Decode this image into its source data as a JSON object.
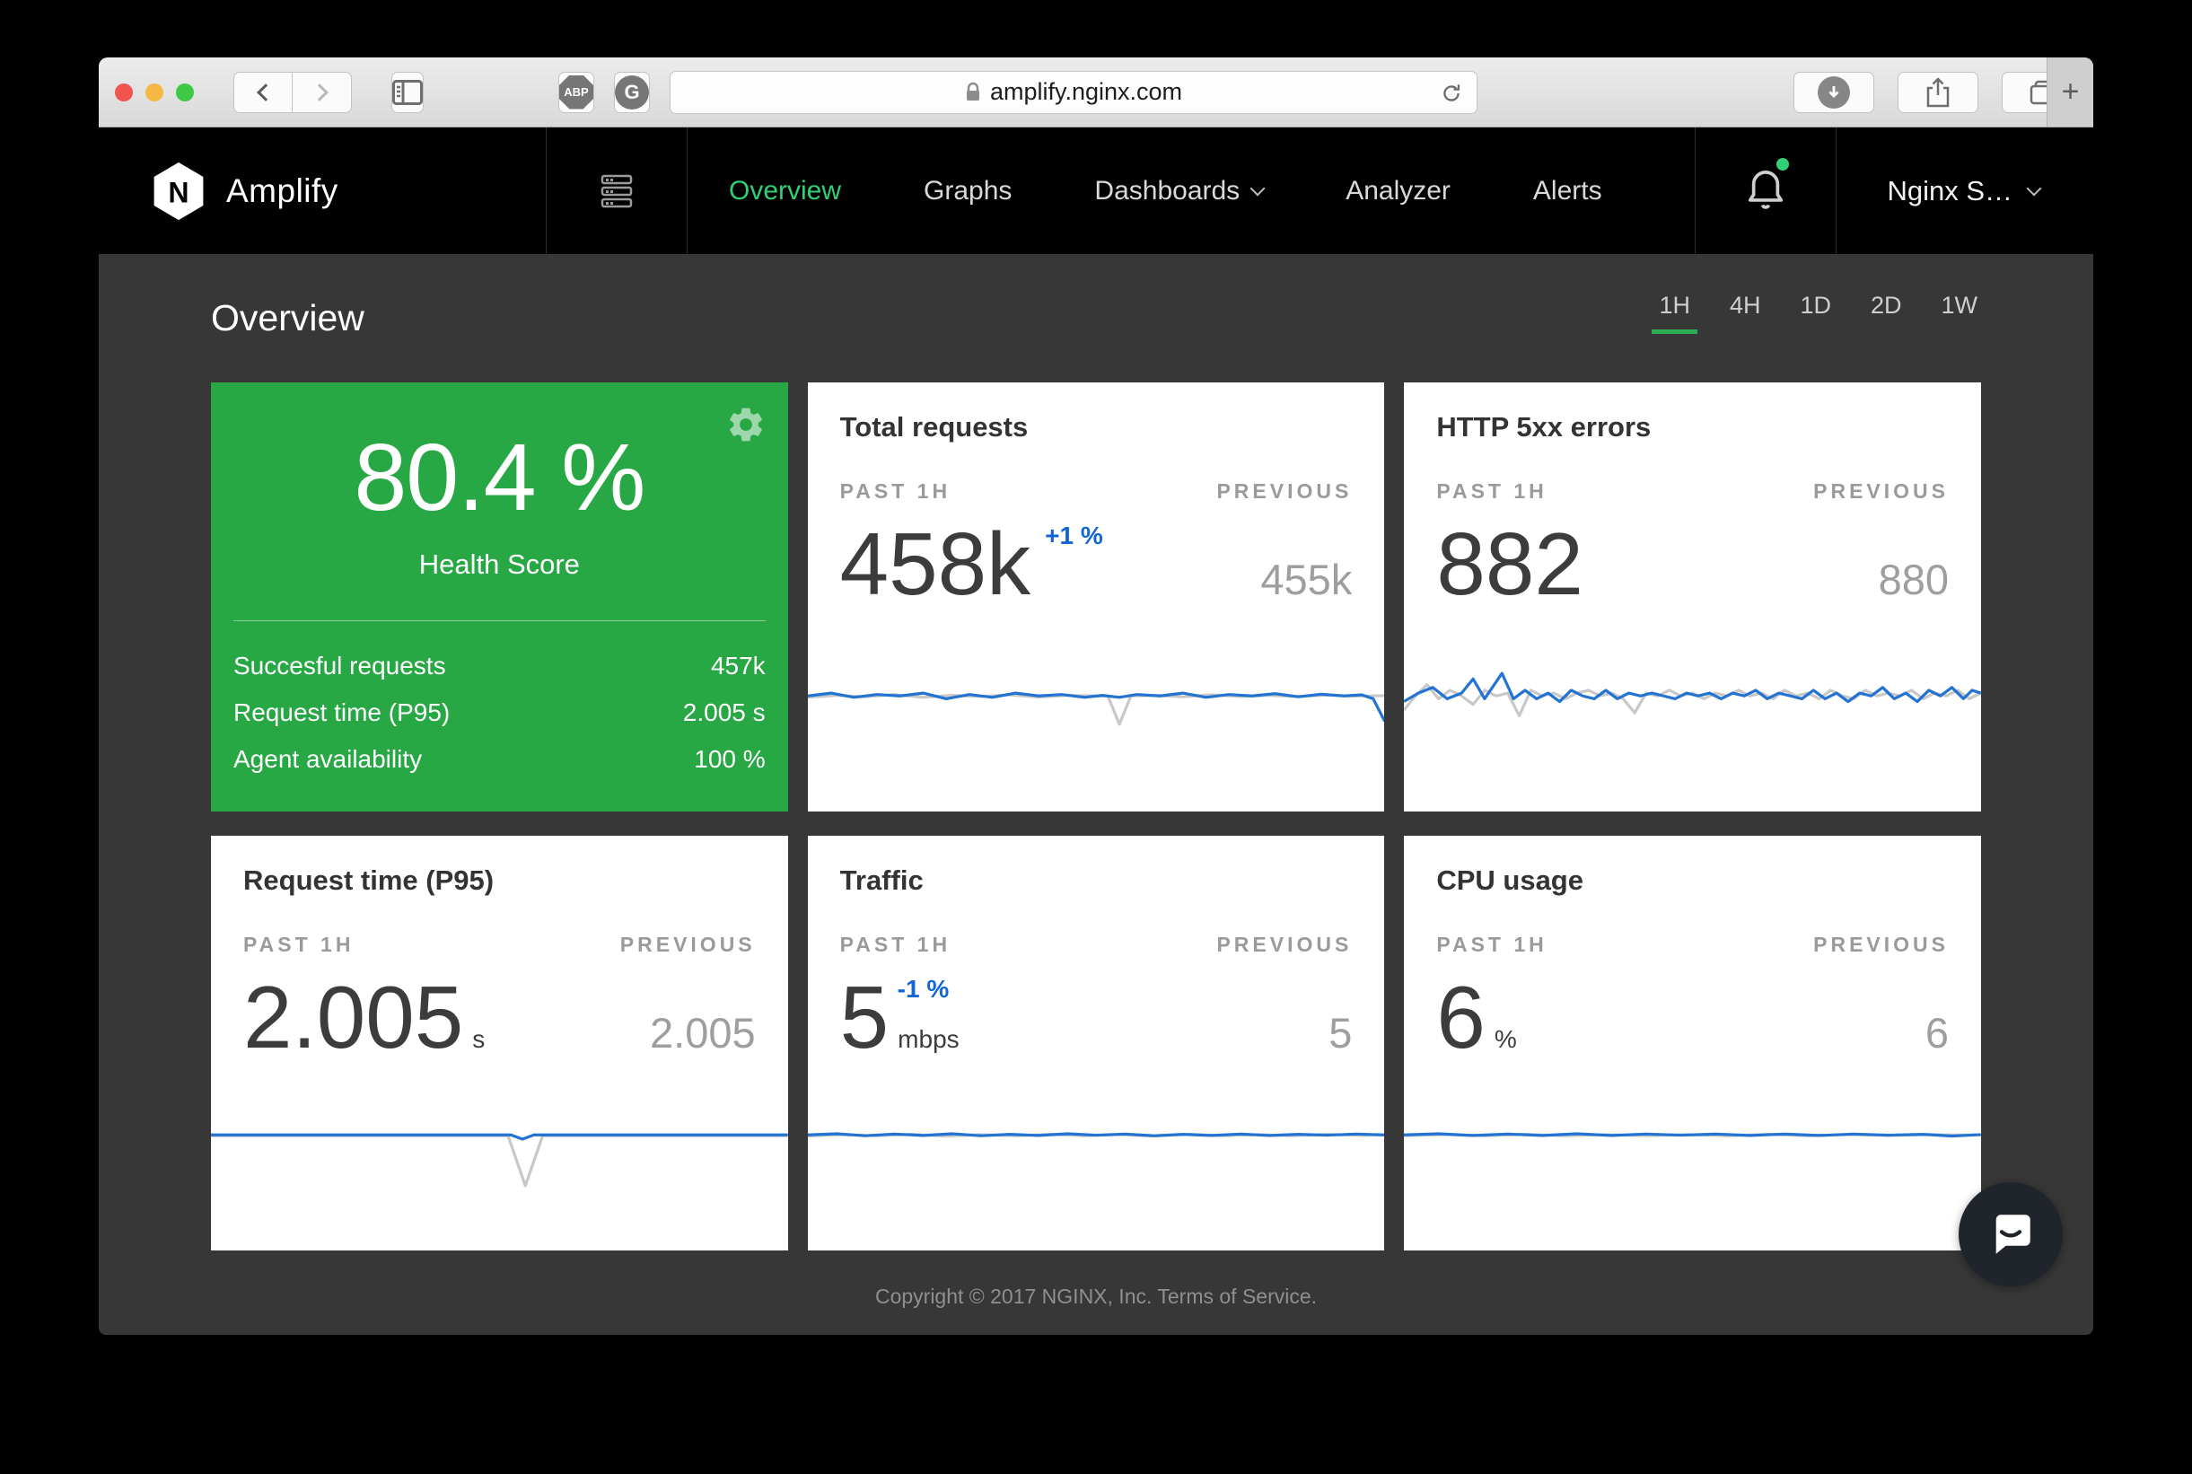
{
  "browser": {
    "url": "amplify.nginx.com",
    "new_tab_label": "+",
    "abp_label": "ABP",
    "ghostery_label": "G"
  },
  "nav": {
    "brand": "Amplify",
    "items": [
      {
        "label": "Overview"
      },
      {
        "label": "Graphs"
      },
      {
        "label": "Dashboards"
      },
      {
        "label": "Analyzer"
      },
      {
        "label": "Alerts"
      }
    ],
    "account": "Nginx S…"
  },
  "page": {
    "title": "Overview",
    "time_ranges": [
      "1H",
      "4H",
      "1D",
      "2D",
      "1W"
    ],
    "active_range": "1H"
  },
  "health_card": {
    "score": "80.4 %",
    "label": "Health Score",
    "stats": [
      {
        "label": "Succesful requests",
        "value": "457k"
      },
      {
        "label": "Request time (P95)",
        "value": "2.005 s"
      },
      {
        "label": "Agent availability",
        "value": "100 %"
      }
    ]
  },
  "cards": {
    "total_requests": {
      "title": "Total requests",
      "past_label": "PAST 1H",
      "prev_label": "PREVIOUS",
      "value": "458k",
      "delta": "+1 %",
      "prev": "455k"
    },
    "http_5xx": {
      "title": "HTTP 5xx errors",
      "past_label": "PAST 1H",
      "prev_label": "PREVIOUS",
      "value": "882",
      "prev": "880"
    },
    "request_time": {
      "title": "Request time (P95)",
      "past_label": "PAST 1H",
      "prev_label": "PREVIOUS",
      "value": "2.005",
      "unit": "s",
      "prev": "2.005"
    },
    "traffic": {
      "title": "Traffic",
      "past_label": "PAST 1H",
      "prev_label": "PREVIOUS",
      "value": "5",
      "unit": "mbps",
      "delta": "-1 %",
      "prev": "5"
    },
    "cpu": {
      "title": "CPU usage",
      "past_label": "PAST 1H",
      "prev_label": "PREVIOUS",
      "value": "6",
      "unit": "%",
      "prev": "6"
    }
  },
  "footer": {
    "copyright": "Copyright © 2017 NGINX, Inc.",
    "terms": "Terms of Service."
  },
  "colors": {
    "accent_green": "#28a745",
    "nav_active_green": "#31d074",
    "range_underline_green": "#2bae53",
    "delta_blue": "#1266d8",
    "line_blue": "#2273d2",
    "line_gray": "#c8c8c8"
  },
  "sparklines": {
    "total_requests": {
      "series": [
        {
          "name": "previous",
          "color": "#c8c8c8",
          "points": [
            [
              0,
              15.5
            ],
            [
              10,
              14.8
            ],
            [
              20,
              15.3
            ],
            [
              30,
              14.5
            ],
            [
              40,
              15.5
            ],
            [
              50,
              14.8
            ],
            [
              60,
              15.2
            ],
            [
              70,
              14.6
            ],
            [
              80,
              15.4
            ],
            [
              90,
              14.8
            ],
            [
              100,
              15
            ],
            [
              104,
              15
            ],
            [
              108,
              25
            ],
            [
              112,
              15
            ],
            [
              120,
              14.8
            ],
            [
              130,
              15.3
            ],
            [
              140,
              14.6
            ],
            [
              150,
              15.2
            ],
            [
              160,
              14.8
            ],
            [
              170,
              15.2
            ],
            [
              180,
              14.7
            ],
            [
              190,
              15.1
            ],
            [
              200,
              14.9
            ]
          ]
        },
        {
          "name": "current",
          "color": "#2273d2",
          "points": [
            [
              0,
              15
            ],
            [
              8,
              14
            ],
            [
              16,
              15.5
            ],
            [
              24,
              14.5
            ],
            [
              32,
              15
            ],
            [
              40,
              14
            ],
            [
              48,
              16
            ],
            [
              56,
              14.5
            ],
            [
              64,
              15.5
            ],
            [
              72,
              14
            ],
            [
              80,
              15
            ],
            [
              88,
              14.5
            ],
            [
              96,
              15.5
            ],
            [
              102,
              14.8
            ],
            [
              108,
              15.5
            ],
            [
              114,
              14.5
            ],
            [
              122,
              15
            ],
            [
              130,
              14
            ],
            [
              138,
              15.5
            ],
            [
              146,
              14.5
            ],
            [
              154,
              15
            ],
            [
              162,
              14.2
            ],
            [
              170,
              15.3
            ],
            [
              178,
              14.4
            ],
            [
              186,
              15
            ],
            [
              192,
              14.6
            ],
            [
              196,
              16
            ],
            [
              200,
              24
            ]
          ]
        }
      ]
    },
    "http_5xx": {
      "series": [
        {
          "name": "previous",
          "color": "#c8c8c8",
          "points": [
            [
              0,
              20
            ],
            [
              4,
              15
            ],
            [
              8,
              11
            ],
            [
              12,
              16
            ],
            [
              16,
              13
            ],
            [
              20,
              15
            ],
            [
              24,
              18
            ],
            [
              28,
              13
            ],
            [
              32,
              15
            ],
            [
              36,
              14
            ],
            [
              40,
              22
            ],
            [
              44,
              13
            ],
            [
              48,
              15
            ],
            [
              52,
              14
            ],
            [
              56,
              16
            ],
            [
              60,
              14
            ],
            [
              64,
              13
            ],
            [
              68,
              15
            ],
            [
              72,
              14
            ],
            [
              76,
              16
            ],
            [
              80,
              21
            ],
            [
              84,
              14
            ],
            [
              88,
              15
            ],
            [
              92,
              13
            ],
            [
              96,
              15
            ],
            [
              100,
              14
            ],
            [
              104,
              16
            ],
            [
              108,
              14
            ],
            [
              112,
              15
            ],
            [
              116,
              13
            ],
            [
              120,
              15
            ],
            [
              124,
              14
            ],
            [
              128,
              16
            ],
            [
              132,
              13
            ],
            [
              136,
              15
            ],
            [
              140,
              14
            ],
            [
              144,
              16
            ],
            [
              148,
              13
            ],
            [
              152,
              15
            ],
            [
              156,
              16
            ],
            [
              160,
              13
            ],
            [
              164,
              15
            ],
            [
              168,
              14
            ],
            [
              172,
              15
            ],
            [
              176,
              13
            ],
            [
              180,
              16
            ],
            [
              184,
              14
            ],
            [
              188,
              15
            ],
            [
              192,
              13
            ],
            [
              196,
              16
            ],
            [
              200,
              14
            ]
          ]
        },
        {
          "name": "current",
          "color": "#2273d2",
          "points": [
            [
              0,
              17
            ],
            [
              5,
              14
            ],
            [
              10,
              12
            ],
            [
              15,
              16
            ],
            [
              20,
              14
            ],
            [
              24,
              9
            ],
            [
              28,
              16
            ],
            [
              34,
              7
            ],
            [
              38,
              16
            ],
            [
              42,
              13
            ],
            [
              46,
              16
            ],
            [
              50,
              14
            ],
            [
              54,
              17
            ],
            [
              58,
              13
            ],
            [
              62,
              15
            ],
            [
              66,
              16
            ],
            [
              70,
              13
            ],
            [
              74,
              16
            ],
            [
              78,
              14
            ],
            [
              82,
              15
            ],
            [
              86,
              14
            ],
            [
              90,
              15
            ],
            [
              94,
              16
            ],
            [
              98,
              14
            ],
            [
              102,
              15
            ],
            [
              106,
              14
            ],
            [
              110,
              16
            ],
            [
              114,
              14
            ],
            [
              118,
              15
            ],
            [
              122,
              13
            ],
            [
              126,
              16
            ],
            [
              130,
              14
            ],
            [
              134,
              15
            ],
            [
              138,
              16
            ],
            [
              142,
              13
            ],
            [
              146,
              16
            ],
            [
              150,
              14
            ],
            [
              154,
              17
            ],
            [
              158,
              14
            ],
            [
              162,
              15
            ],
            [
              166,
              12
            ],
            [
              170,
              16
            ],
            [
              174,
              14
            ],
            [
              178,
              17
            ],
            [
              182,
              13
            ],
            [
              186,
              15
            ],
            [
              190,
              12
            ],
            [
              194,
              16
            ],
            [
              197,
              13
            ],
            [
              200,
              14
            ]
          ]
        }
      ]
    },
    "request_time": {
      "series": [
        {
          "name": "previous",
          "color": "#c8c8c8",
          "points": [
            [
              0,
              15.3
            ],
            [
              103,
              15.3
            ],
            [
              109,
              33
            ],
            [
              115,
              15.3
            ],
            [
              200,
              15.3
            ]
          ]
        },
        {
          "name": "current",
          "color": "#2273d2",
          "points": [
            [
              0,
              15
            ],
            [
              104,
              15
            ],
            [
              108,
              16.5
            ],
            [
              112,
              15
            ],
            [
              200,
              15
            ]
          ]
        }
      ]
    },
    "traffic": {
      "series": [
        {
          "name": "previous",
          "color": "#c8c8c8",
          "points": [
            [
              0,
              15.4
            ],
            [
              12,
              14.9
            ],
            [
              24,
              15.3
            ],
            [
              36,
              14.8
            ],
            [
              48,
              15.4
            ],
            [
              60,
              14.9
            ],
            [
              72,
              15.3
            ],
            [
              84,
              14.8
            ],
            [
              96,
              15.3
            ],
            [
              108,
              14.9
            ],
            [
              120,
              15.4
            ],
            [
              132,
              14.8
            ],
            [
              144,
              15.3
            ],
            [
              156,
              14.9
            ],
            [
              168,
              15.3
            ],
            [
              180,
              14.8
            ],
            [
              192,
              15.2
            ],
            [
              200,
              15
            ]
          ]
        },
        {
          "name": "current",
          "color": "#2273d2",
          "points": [
            [
              0,
              15
            ],
            [
              10,
              14.6
            ],
            [
              20,
              15.3
            ],
            [
              30,
              14.7
            ],
            [
              40,
              15.2
            ],
            [
              50,
              14.6
            ],
            [
              60,
              15.3
            ],
            [
              70,
              14.8
            ],
            [
              80,
              15.2
            ],
            [
              90,
              14.6
            ],
            [
              100,
              15.1
            ],
            [
              110,
              14.7
            ],
            [
              120,
              15.3
            ],
            [
              130,
              14.8
            ],
            [
              140,
              15.2
            ],
            [
              150,
              14.7
            ],
            [
              160,
              15.2
            ],
            [
              170,
              14.8
            ],
            [
              180,
              15.1
            ],
            [
              190,
              14.7
            ],
            [
              200,
              15
            ]
          ]
        }
      ]
    },
    "cpu": {
      "series": [
        {
          "name": "previous",
          "color": "#c8c8c8",
          "points": [
            [
              0,
              15.3
            ],
            [
              14,
              14.9
            ],
            [
              28,
              15.3
            ],
            [
              42,
              14.8
            ],
            [
              56,
              15.3
            ],
            [
              70,
              14.9
            ],
            [
              84,
              15.3
            ],
            [
              98,
              14.9
            ],
            [
              112,
              15.3
            ],
            [
              126,
              14.8
            ],
            [
              140,
              15.3
            ],
            [
              154,
              14.9
            ],
            [
              168,
              15.2
            ],
            [
              182,
              14.9
            ],
            [
              200,
              15.1
            ]
          ]
        },
        {
          "name": "current",
          "color": "#2273d2",
          "points": [
            [
              0,
              15
            ],
            [
              12,
              14.6
            ],
            [
              24,
              15.2
            ],
            [
              36,
              14.7
            ],
            [
              48,
              15.2
            ],
            [
              60,
              14.6
            ],
            [
              72,
              15.2
            ],
            [
              84,
              14.7
            ],
            [
              96,
              15.1
            ],
            [
              108,
              14.7
            ],
            [
              120,
              15.2
            ],
            [
              132,
              14.7
            ],
            [
              144,
              15.2
            ],
            [
              156,
              14.7
            ],
            [
              168,
              15.1
            ],
            [
              180,
              14.8
            ],
            [
              190,
              15.4
            ],
            [
              200,
              14.9
            ]
          ]
        }
      ]
    }
  }
}
